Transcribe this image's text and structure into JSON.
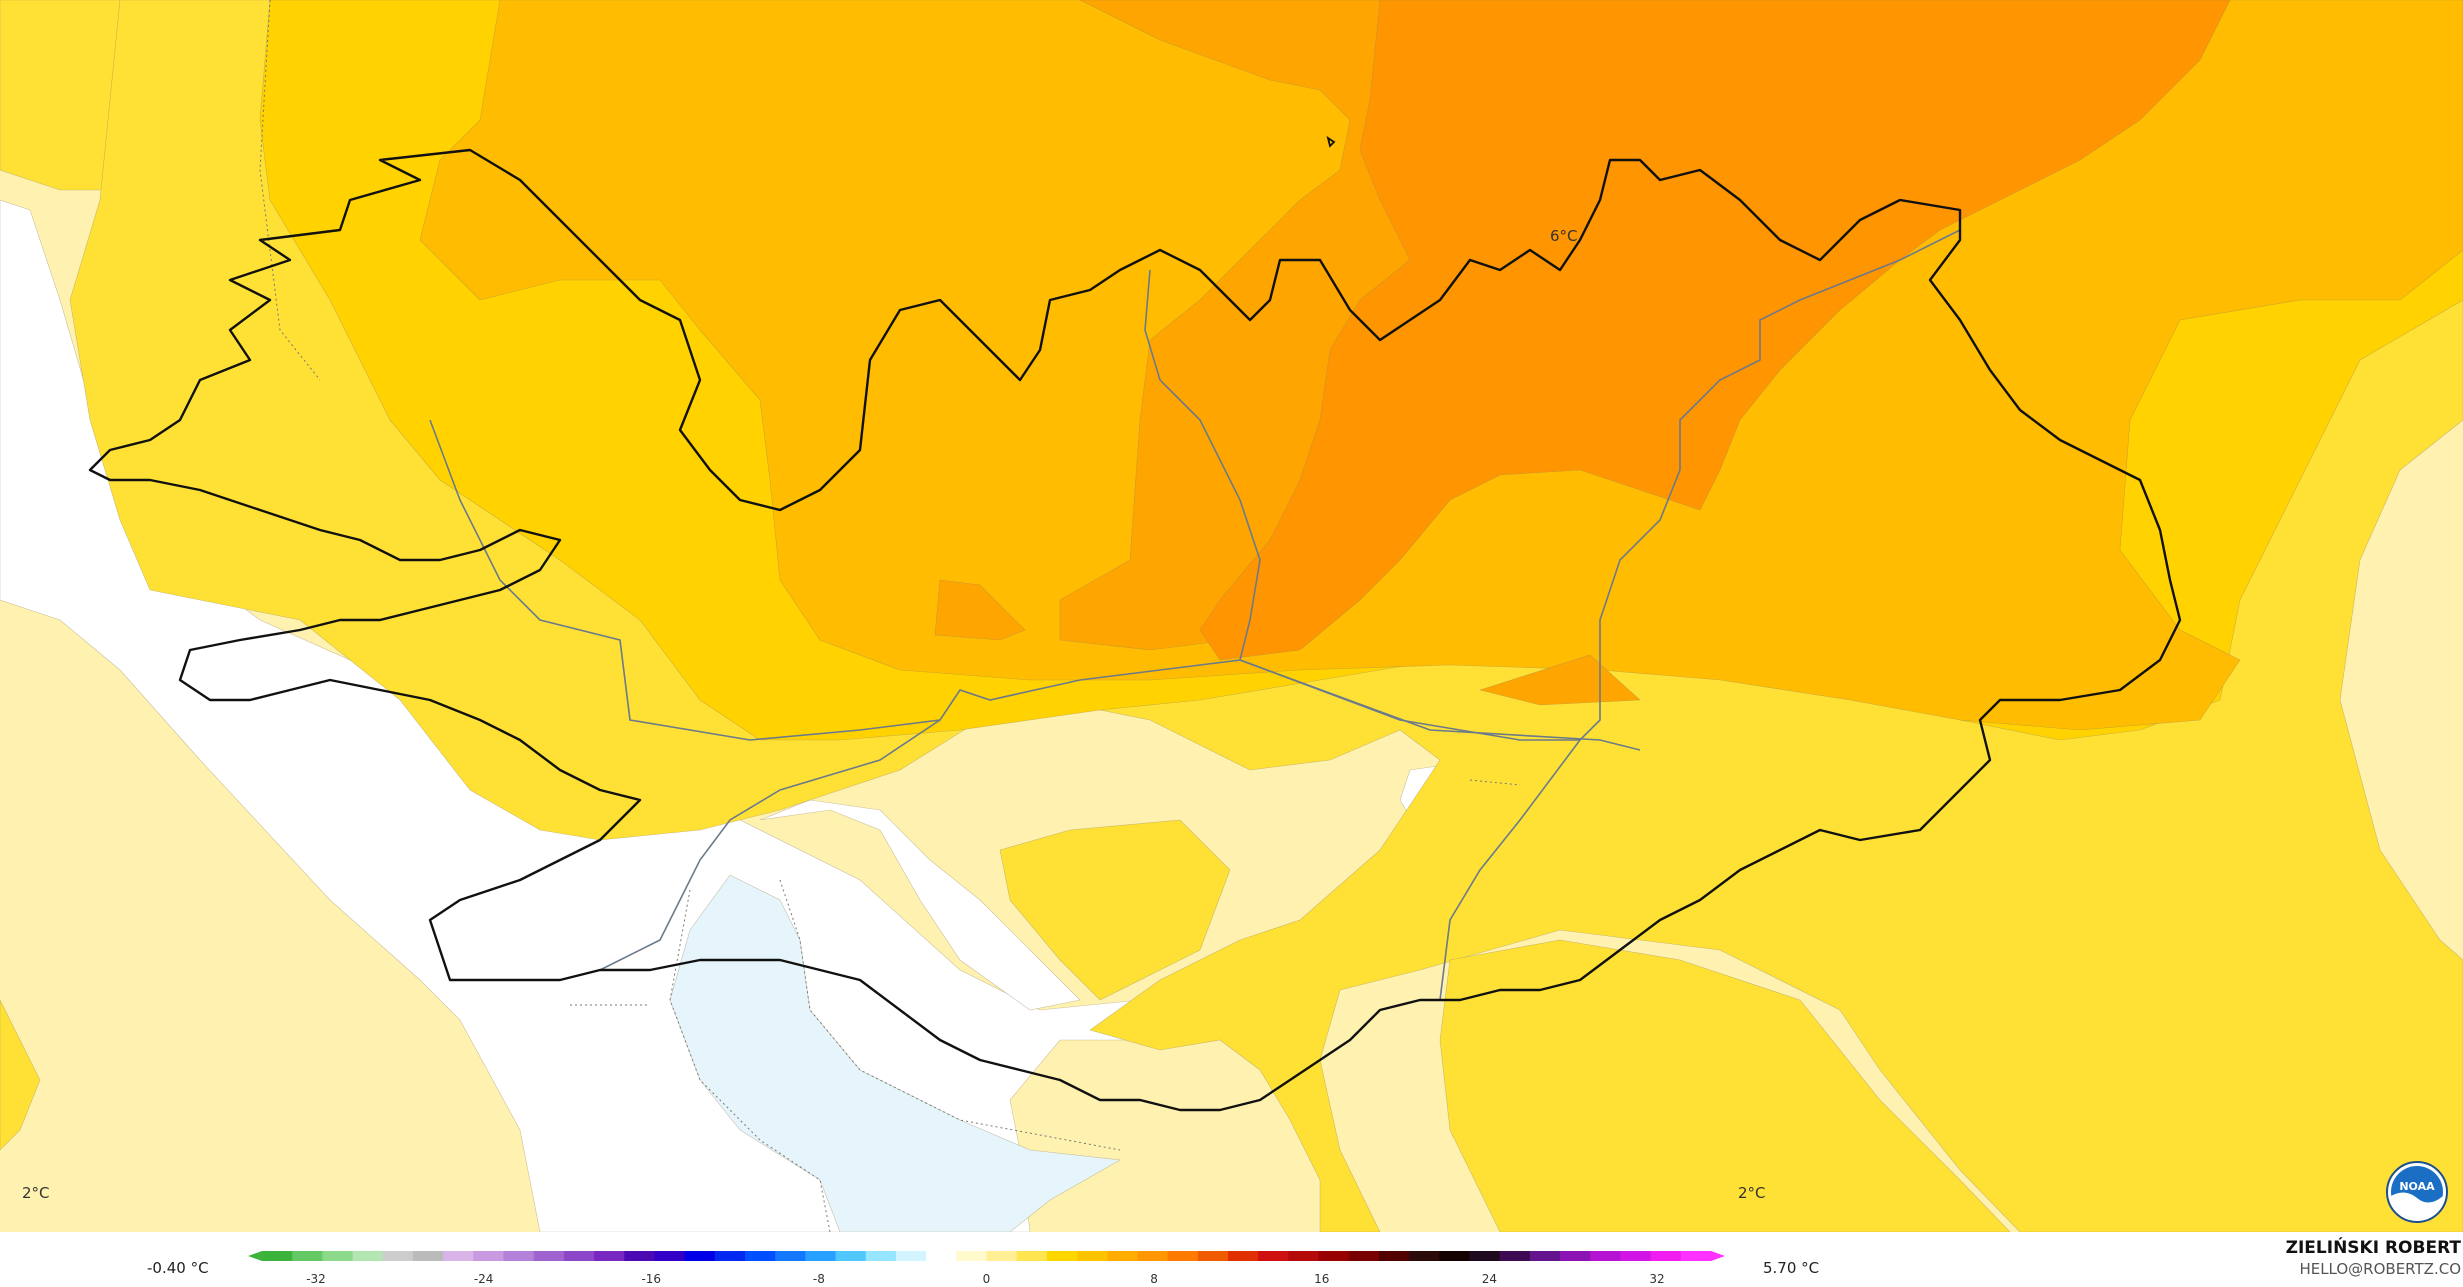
{
  "map": {
    "contour_labels": [
      {
        "id": "north",
        "text": "6°C"
      },
      {
        "id": "west",
        "text": "2°C"
      },
      {
        "id": "southeast",
        "text": "2°C"
      }
    ],
    "fill_colors": {
      "light_blue": "#e6f5fb",
      "white": "#ffffff",
      "pale_yellow": "#fff2b0",
      "yellow": "#ffe135",
      "gold": "#ffd200",
      "orange_light": "#ffbc00",
      "orange": "#ffa500",
      "orange_dark": "#ff9500"
    }
  },
  "legend": {
    "min_label": "-0.40 °C",
    "max_label": "5.70 °C",
    "ticks": [
      "-32",
      "-24",
      "-16",
      "-8",
      "0",
      "8",
      "16",
      "24",
      "32"
    ],
    "colors": [
      "#3cb43c",
      "#64c864",
      "#8cd98c",
      "#b4e6b4",
      "#cccccc",
      "#bbbbbb",
      "#d8b4e8",
      "#c89be0",
      "#b482d8",
      "#a064d0",
      "#8c46c8",
      "#7828c0",
      "#4b0ab4",
      "#3200c8",
      "#0000e6",
      "#0028f0",
      "#0050ff",
      "#1478ff",
      "#28a0ff",
      "#50c8ff",
      "#96e6ff",
      "#d2f5ff",
      "#ffffff",
      "#fffacd",
      "#fff096",
      "#ffe650",
      "#ffd700",
      "#ffc400",
      "#ffae00",
      "#ff9800",
      "#ff7a00",
      "#f05a00",
      "#e03000",
      "#d01010",
      "#b40a0a",
      "#960000",
      "#780000",
      "#500000",
      "#2d0a0a",
      "#140000",
      "#1e0a1e",
      "#3c0a50",
      "#64148c",
      "#8c14b4",
      "#b414d2",
      "#d214e6",
      "#f01ef0",
      "#ff32ff"
    ]
  },
  "credit": {
    "name": "ZIELIŃSKI ROBERT",
    "email": "HELLO@ROBERTZ.CO"
  },
  "logo": {
    "icon": "noaa-logo",
    "text": "NOAA"
  }
}
